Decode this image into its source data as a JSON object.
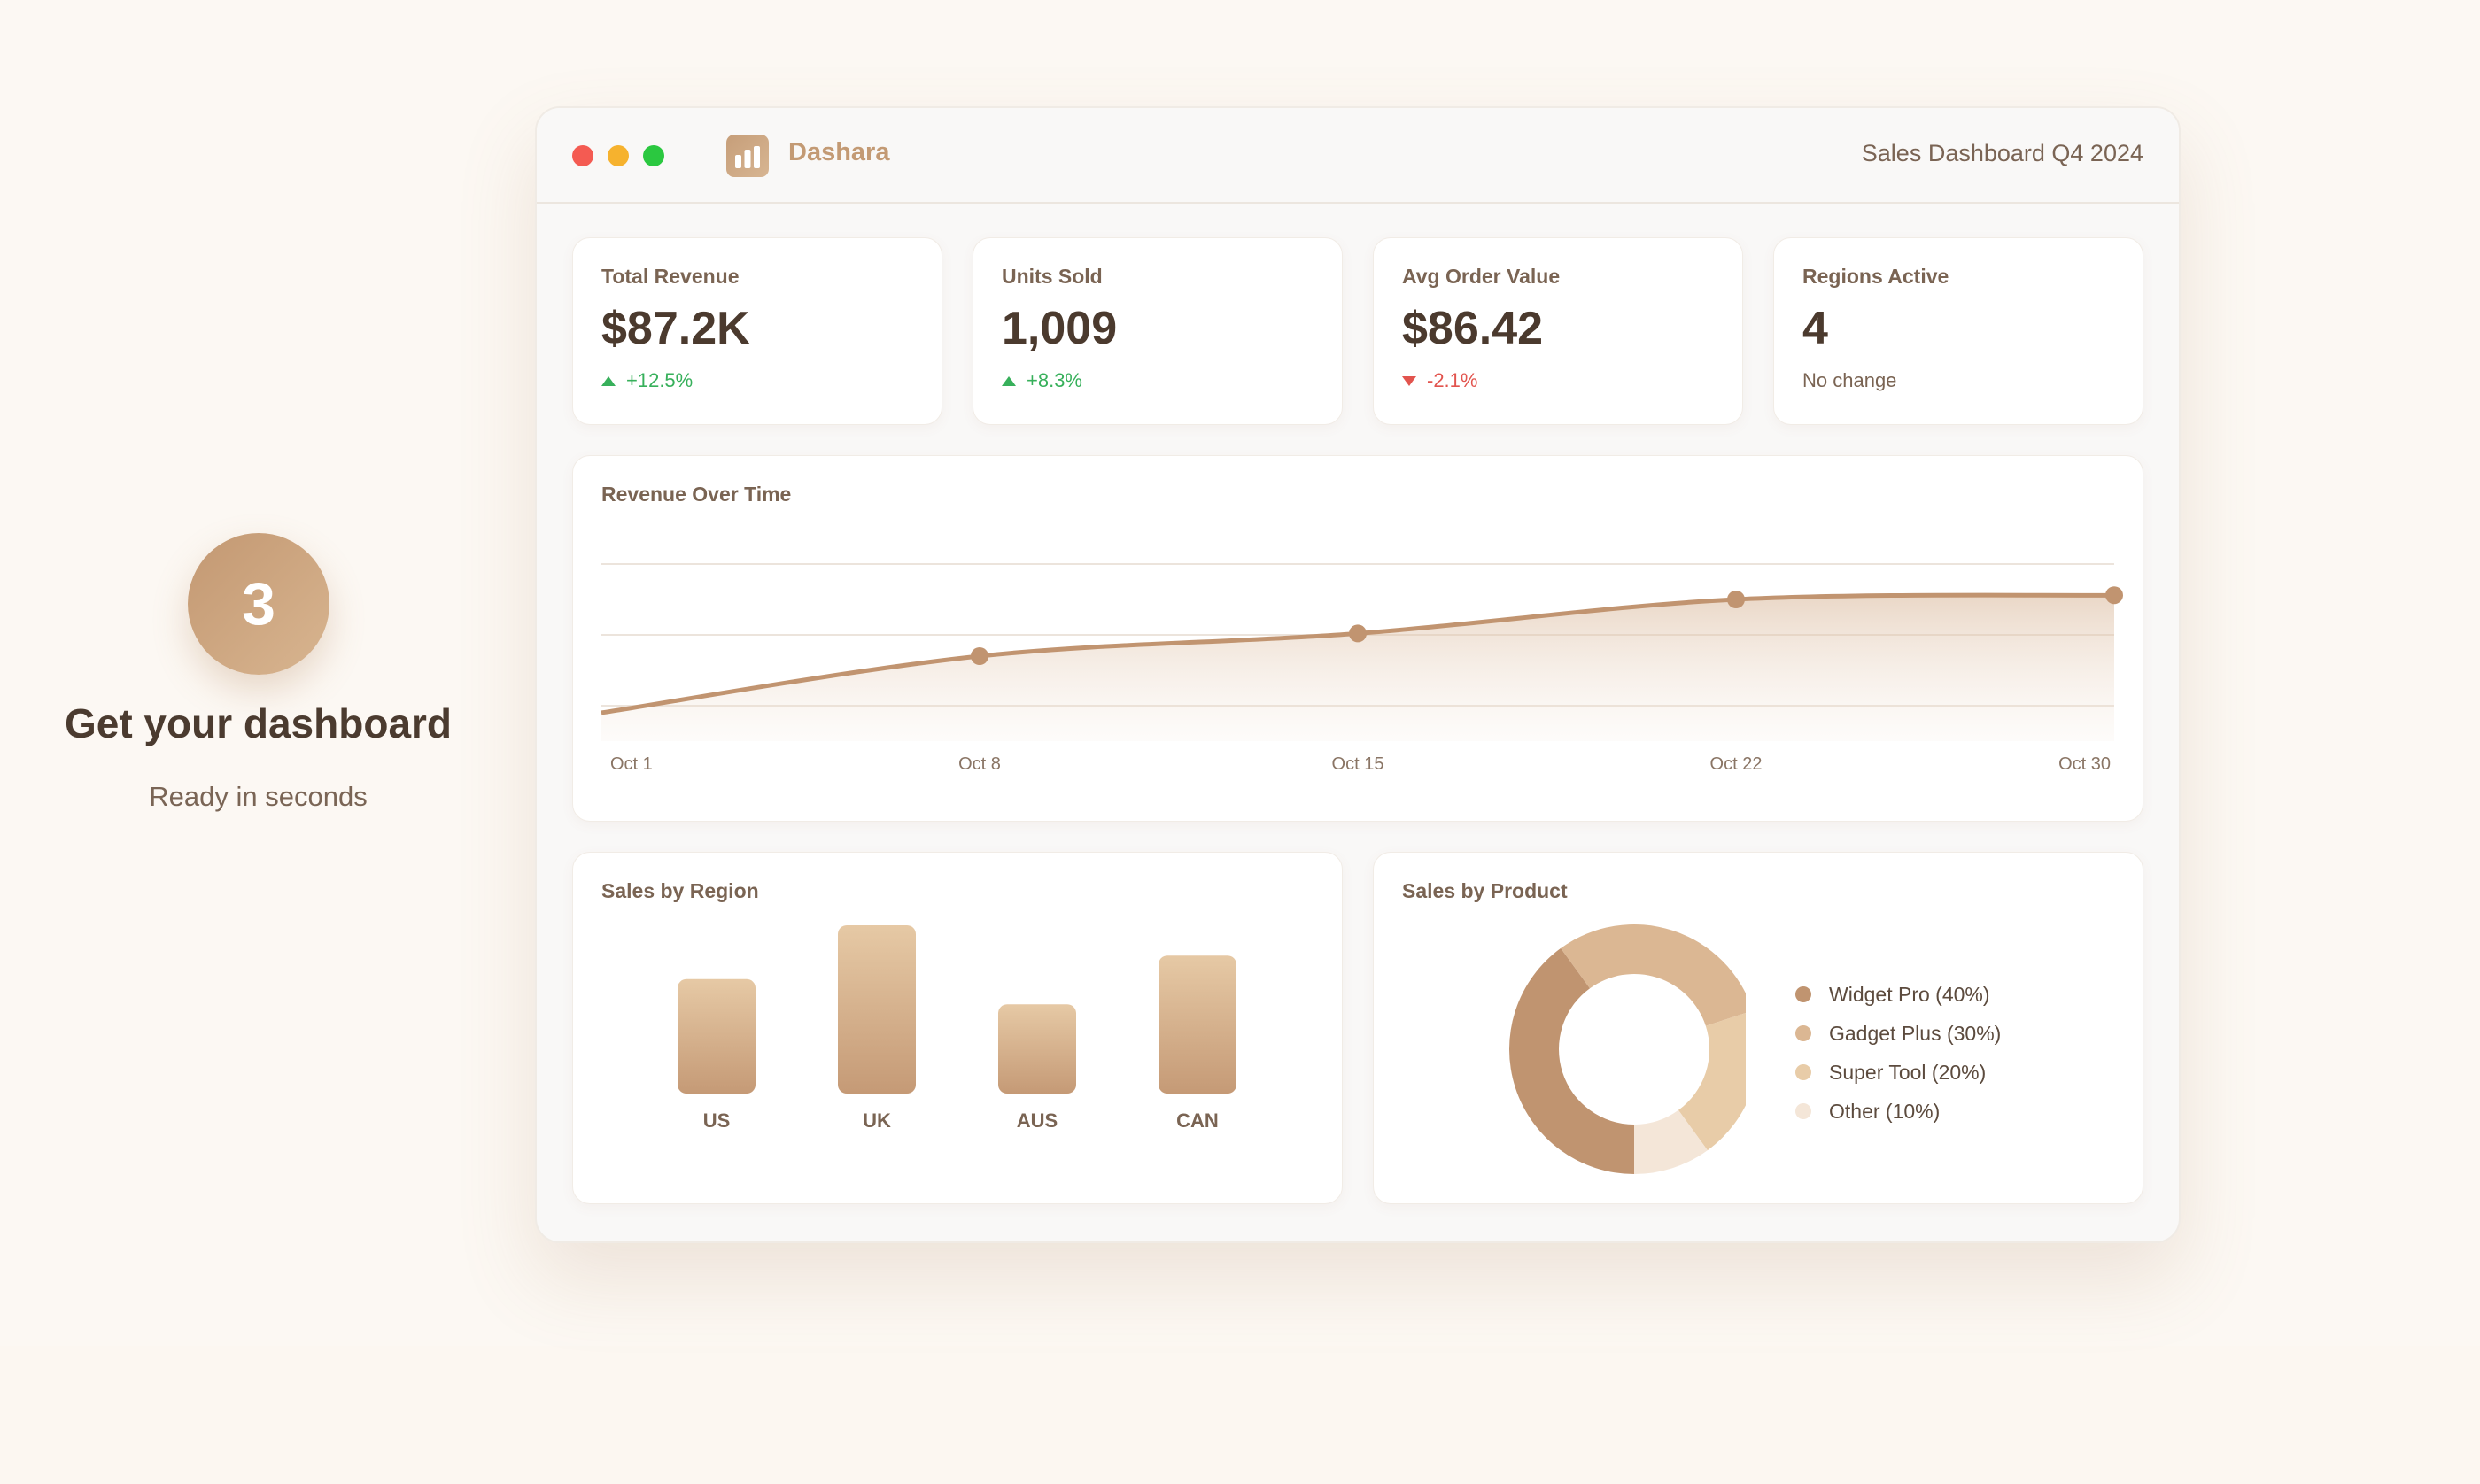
{
  "step": {
    "number": "3",
    "title": "Get your dashboard",
    "subtitle": "Ready in seconds"
  },
  "window": {
    "brand": "Dashara",
    "title": "Sales Dashboard Q4 2024",
    "icons": {
      "logo": "bar-chart-icon"
    }
  },
  "stats": [
    {
      "label": "Total Revenue",
      "value": "$87.2K",
      "change": "+12.5%",
      "trend": "up"
    },
    {
      "label": "Units Sold",
      "value": "1,009",
      "change": "+8.3%",
      "trend": "up"
    },
    {
      "label": "Avg Order Value",
      "value": "$86.42",
      "change": "-2.1%",
      "trend": "down"
    },
    {
      "label": "Regions Active",
      "value": "4",
      "change": "No change",
      "trend": "neutral"
    }
  ],
  "colors": {
    "accent": "#c19470",
    "accent_light": "#dcbe9c",
    "up": "#37b05b",
    "down": "#e2544e",
    "pie": [
      "#c09470",
      "#dbb793",
      "#e8cca8",
      "#f4e6d8"
    ]
  },
  "revenue_chart": {
    "title": "Revenue Over Time",
    "chart_data": {
      "type": "area",
      "x": [
        "Oct 1",
        "Oct 8",
        "Oct 15",
        "Oct 22",
        "Oct 30"
      ],
      "y": [
        20,
        60,
        76,
        100,
        103
      ],
      "ylim": [
        0,
        150
      ],
      "grid": true
    }
  },
  "region_chart": {
    "title": "Sales by Region",
    "chart_data": {
      "type": "bar",
      "categories": [
        "US",
        "UK",
        "AUS",
        "CAN"
      ],
      "values": [
        68,
        100,
        53,
        82
      ],
      "ylim": [
        0,
        100
      ]
    }
  },
  "product_chart": {
    "title": "Sales by Product",
    "chart_data": {
      "type": "pie",
      "labels": [
        "Widget Pro",
        "Gadget Plus",
        "Super Tool",
        "Other"
      ],
      "values": [
        40,
        30,
        20,
        10
      ],
      "legend": [
        "Widget Pro (40%)",
        "Gadget Plus (30%)",
        "Super Tool (20%)",
        "Other (10%)"
      ]
    }
  }
}
